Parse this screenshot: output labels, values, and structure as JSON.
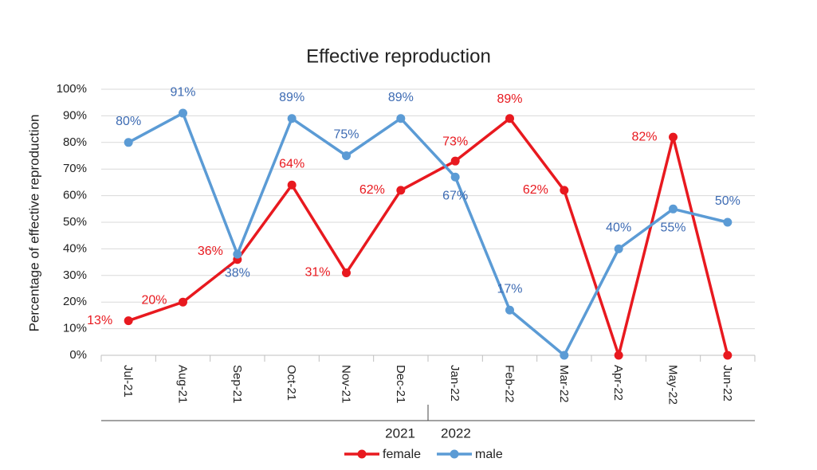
{
  "chart_data": {
    "type": "line",
    "title": "Effective reproduction",
    "y_label": "Percentage of effective reproduction",
    "categories": [
      "Jul-21",
      "Aug-21",
      "Sep-21",
      "Oct-21",
      "Nov-21",
      "Dec-21",
      "Jan-22",
      "Feb-22",
      "Mar-22",
      "Apr-22",
      "May-22",
      "Jun-22"
    ],
    "x_group_labels": [
      "2021",
      "2022"
    ],
    "series": [
      {
        "name": "female",
        "color": "#e8191f",
        "label_color": "#e8191f",
        "values": [
          13,
          20,
          36,
          64,
          31,
          62,
          73,
          89,
          62,
          0,
          82,
          0
        ],
        "value_labels": [
          "13%",
          "20%",
          "36%",
          "64%",
          "31%",
          "62%",
          "73%",
          "89%",
          "62%",
          null,
          "82%",
          null
        ]
      },
      {
        "name": "male",
        "color": "#5b9bd5",
        "label_color": "#3d6bb3",
        "values": [
          80,
          91,
          38,
          89,
          75,
          89,
          67,
          17,
          0,
          40,
          55,
          50
        ],
        "value_labels": [
          "80%",
          "91%",
          "38%",
          "89%",
          "75%",
          "89%",
          "67%",
          "17%",
          null,
          "40%",
          "55%",
          "50%"
        ]
      }
    ],
    "ylim": [
      0,
      100
    ],
    "yticks": [
      {
        "value": 0,
        "label": "0%"
      },
      {
        "value": 10,
        "label": "10%"
      },
      {
        "value": 20,
        "label": "20%"
      },
      {
        "value": 30,
        "label": "30%"
      },
      {
        "value": 40,
        "label": "40%"
      },
      {
        "value": 50,
        "label": "50%"
      },
      {
        "value": 60,
        "label": "60%"
      },
      {
        "value": 70,
        "label": "70%"
      },
      {
        "value": 80,
        "label": "80%"
      },
      {
        "value": 90,
        "label": "90%"
      },
      {
        "value": 100,
        "label": "100%"
      }
    ],
    "grid": true,
    "legend": "bottom"
  }
}
